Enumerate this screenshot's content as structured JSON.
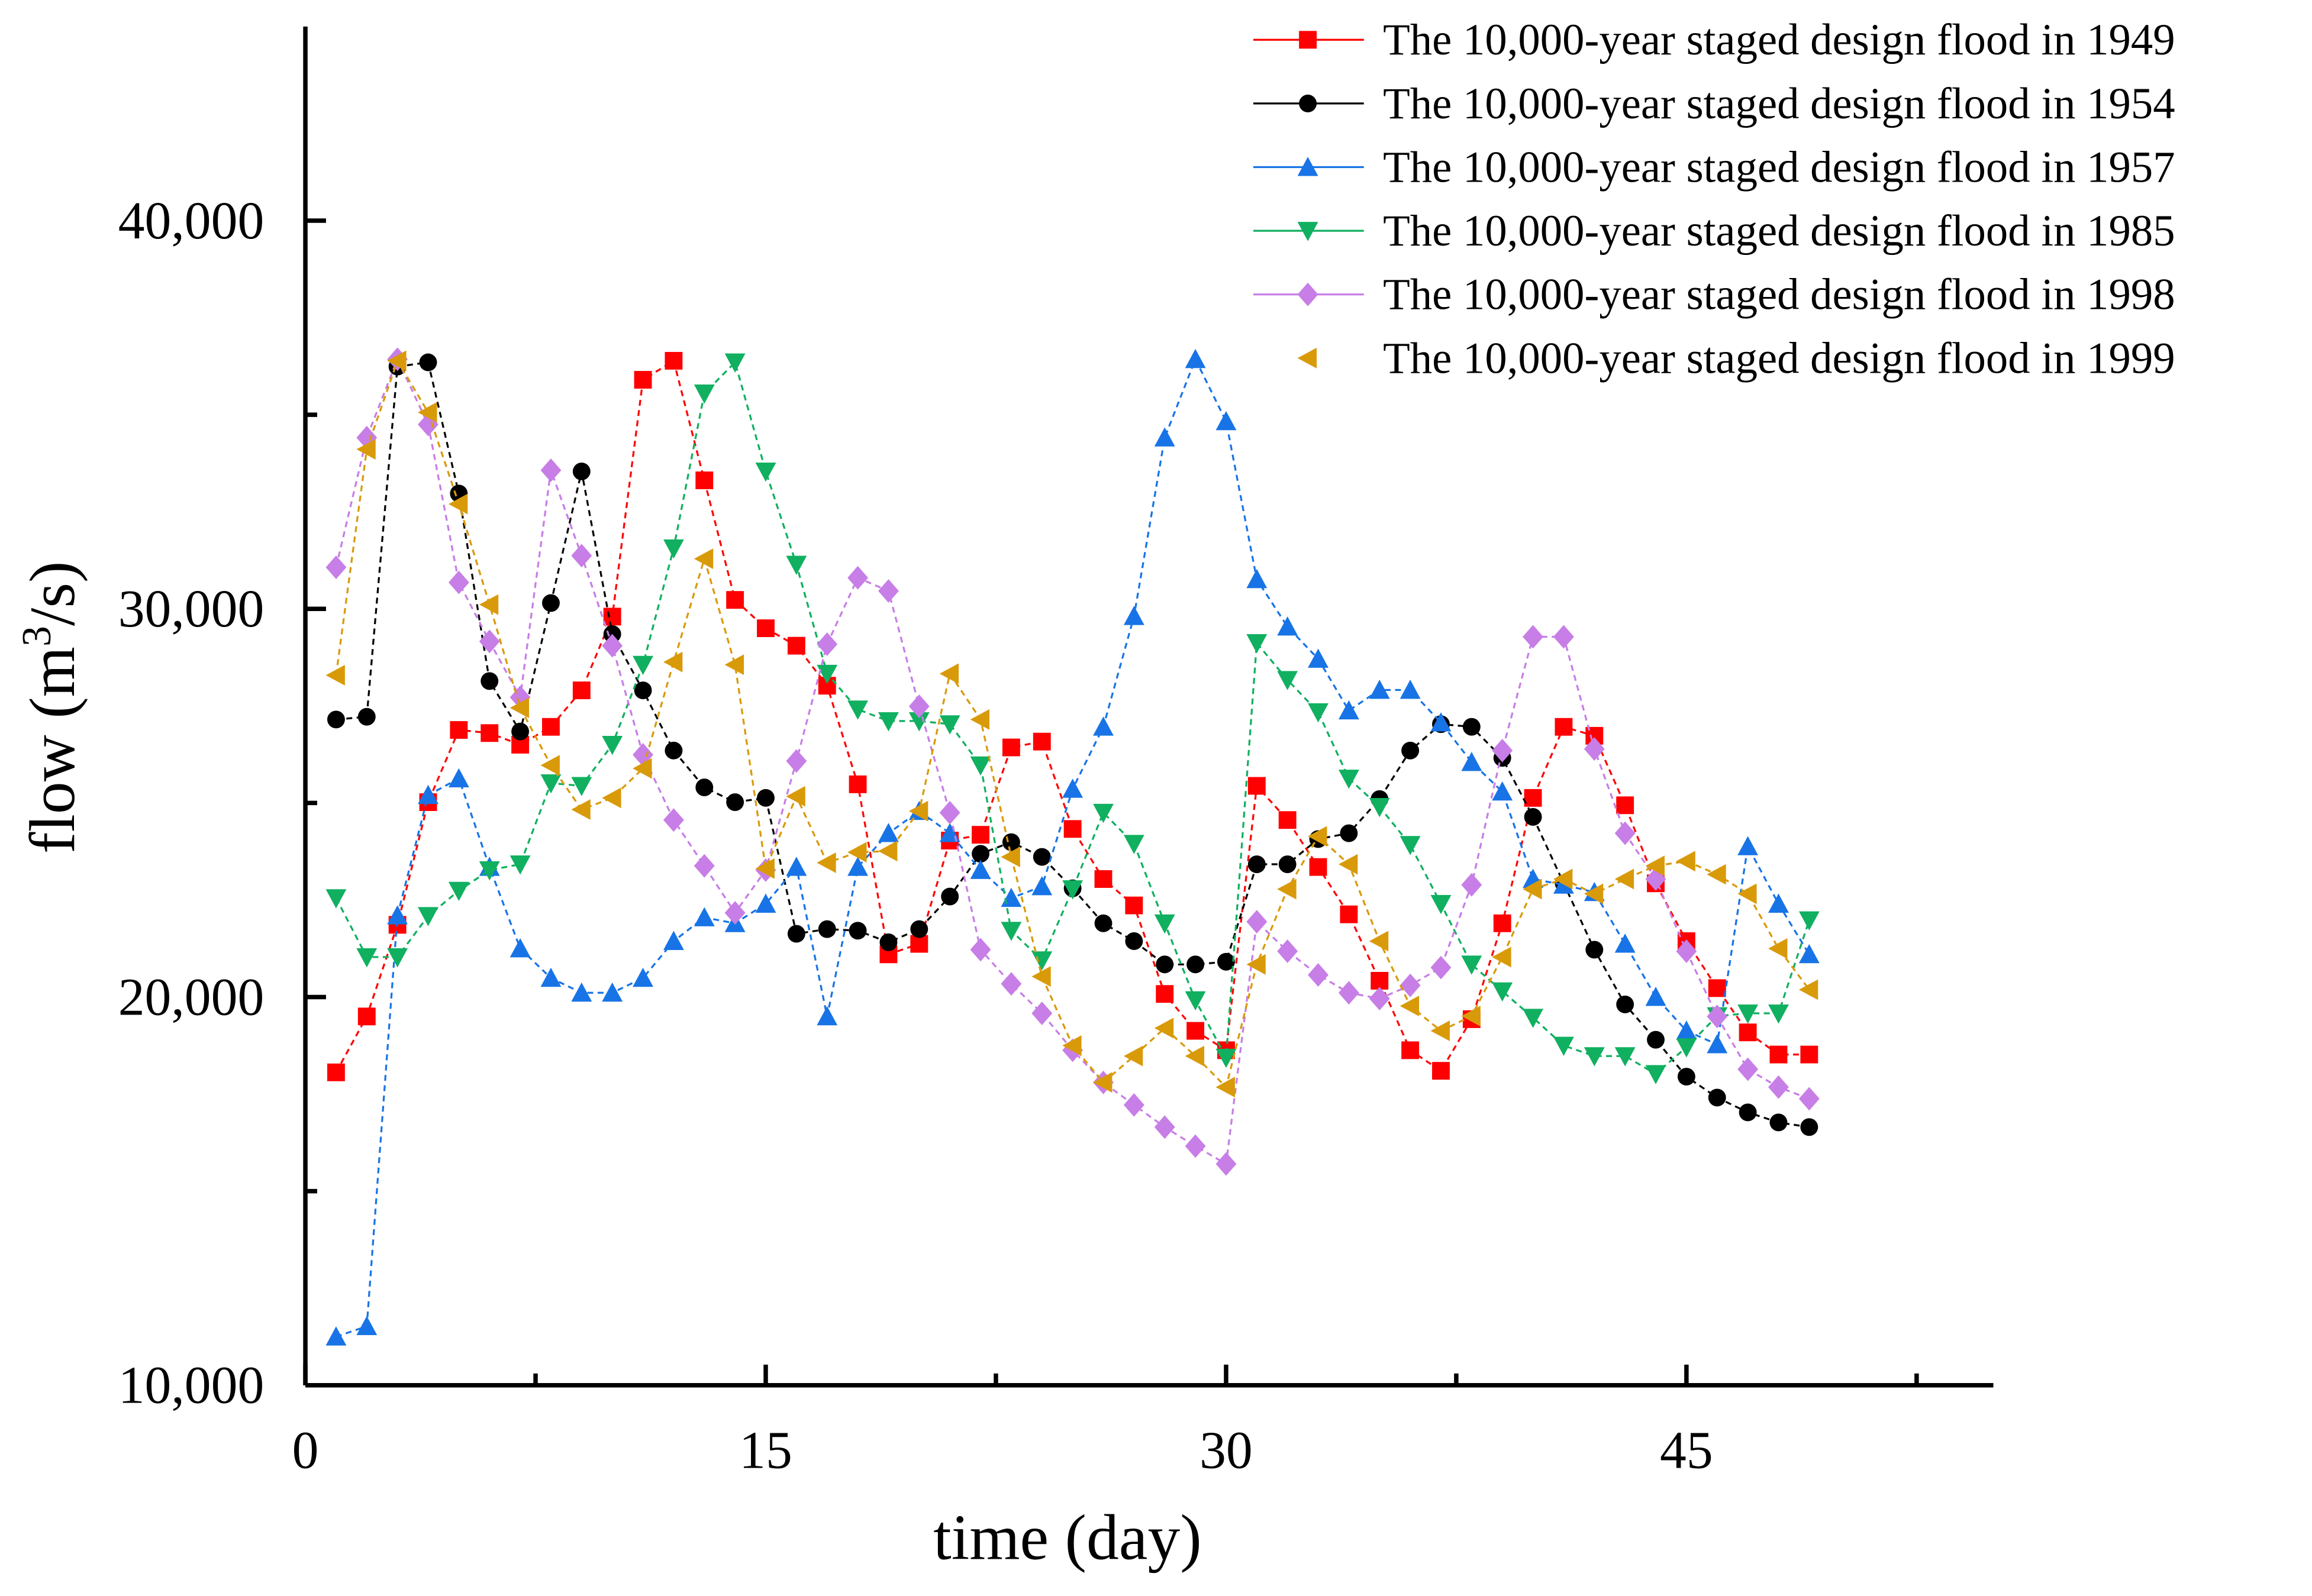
{
  "chart_data": {
    "type": "line",
    "title": "",
    "xlabel": "time (day)",
    "ylabel_parts": [
      "flow (m",
      "3",
      "/s)"
    ],
    "xlim": [
      0,
      55
    ],
    "ylim": [
      10000,
      45000
    ],
    "x_ticks": [
      0,
      15,
      30,
      45
    ],
    "x_tick_labels": [
      "0",
      "15",
      "30",
      "45"
    ],
    "y_ticks": [
      10000,
      20000,
      30000,
      40000
    ],
    "y_tick_labels": [
      "10,000",
      "20,000",
      "30,000",
      "40,000"
    ],
    "grid": false,
    "legend_position": "top-right",
    "x": [
      1,
      2,
      3,
      4,
      5,
      6,
      7,
      8,
      9,
      10,
      11,
      12,
      13,
      14,
      15,
      16,
      17,
      18,
      19,
      20,
      21,
      22,
      23,
      24,
      25,
      26,
      27,
      28,
      29,
      30,
      31,
      32,
      33,
      34,
      35,
      36,
      37,
      38,
      39,
      40,
      41,
      42,
      43,
      44,
      45,
      46,
      47,
      48,
      49
    ],
    "series": [
      {
        "name": "The 10,000-year staged design flood in 1949",
        "color": "#ff0000",
        "marker": "square",
        "values": [
          18060,
          19500,
          21860,
          25020,
          26880,
          26800,
          26500,
          26960,
          27900,
          29800,
          35900,
          36390,
          33310,
          30230,
          29500,
          29050,
          28020,
          25480,
          21100,
          21370,
          24030,
          24180,
          26430,
          26580,
          24330,
          23040,
          22360,
          20080,
          19130,
          18630,
          25440,
          24560,
          23350,
          22130,
          20420,
          18630,
          18100,
          19430,
          21900,
          25130,
          26960,
          26730,
          24940,
          22930,
          21440,
          20230,
          19090,
          18520,
          18520
        ]
      },
      {
        "name": "The 10,000-year staged design flood in 1954",
        "color": "#000000",
        "marker": "circle",
        "values": [
          27150,
          27220,
          36240,
          36350,
          32970,
          28140,
          26840,
          30150,
          33540,
          29350,
          27900,
          26350,
          25400,
          25020,
          25130,
          21630,
          21750,
          21710,
          21410,
          21750,
          22590,
          23690,
          23990,
          23610,
          22800,
          21900,
          21440,
          20840,
          20840,
          20910,
          23420,
          23420,
          24070,
          24220,
          25100,
          26350,
          27030,
          26960,
          26160,
          24640,
          22930,
          21220,
          19810,
          18900,
          17950,
          17410,
          17030,
          16770,
          16650
        ]
      },
      {
        "name": "The 10,000-year staged design flood in 1957",
        "color": "#1874e6",
        "marker": "triangle-up",
        "values": [
          11250,
          11520,
          22100,
          25200,
          25630,
          23350,
          21250,
          20490,
          20110,
          20110,
          20490,
          21440,
          22050,
          21900,
          22400,
          23350,
          19500,
          23350,
          24220,
          24790,
          24220,
          23270,
          22550,
          22850,
          25360,
          26960,
          29810,
          34410,
          36430,
          34830,
          30760,
          29540,
          28710,
          27380,
          27910,
          27910,
          27070,
          26050,
          25290,
          23040,
          22890,
          22700,
          21370,
          20000,
          19130,
          18780,
          23880,
          22400,
          21100
        ]
      },
      {
        "name": "The 10,000-year staged design flood in 1985",
        "color": "#10b060",
        "marker": "triangle-down",
        "values": [
          22550,
          21030,
          21030,
          22090,
          22740,
          23270,
          23420,
          25510,
          25440,
          26500,
          28560,
          31560,
          35550,
          36350,
          33540,
          31140,
          28330,
          27410,
          27110,
          27110,
          27030,
          25970,
          21710,
          20950,
          22780,
          24750,
          23950,
          21900,
          19920,
          18440,
          29120,
          28170,
          27340,
          25630,
          24900,
          23920,
          22400,
          20840,
          20150,
          19470,
          18750,
          18480,
          18480,
          18020,
          18710,
          19510,
          19580,
          19580,
          21980
        ]
      },
      {
        "name": "The 10,000-year staged design flood in 1998",
        "color": "#c77ee6",
        "marker": "diamond",
        "values": [
          31070,
          34410,
          36430,
          34750,
          30680,
          29160,
          27720,
          33570,
          31370,
          29050,
          26240,
          24560,
          23380,
          22170,
          23270,
          26080,
          29090,
          30800,
          30460,
          27490,
          24750,
          21220,
          20340,
          19580,
          18630,
          17800,
          17220,
          16650,
          16160,
          15700,
          21940,
          21180,
          20570,
          20110,
          19960,
          20300,
          20760,
          22890,
          26350,
          29280,
          29280,
          26390,
          24220,
          23040,
          21180,
          19500,
          18140,
          17680,
          17380
        ]
      },
      {
        "name": "The 10,000-year staged design flood in 1999",
        "color": "#d99a0a",
        "marker": "triangle-left",
        "values": [
          28290,
          34110,
          36390,
          35060,
          32700,
          30110,
          27450,
          25970,
          24830,
          25130,
          25890,
          28630,
          31290,
          28560,
          23310,
          25170,
          23460,
          23730,
          23760,
          24790,
          28330,
          27150,
          23610,
          20530,
          18750,
          17800,
          18480,
          19200,
          18480,
          17680,
          20840,
          22780,
          24140,
          23420,
          21440,
          19770,
          19130,
          19510,
          21030,
          22780,
          23040,
          22660,
          23040,
          23380,
          23500,
          23160,
          22660,
          21250,
          20190
        ]
      }
    ]
  }
}
